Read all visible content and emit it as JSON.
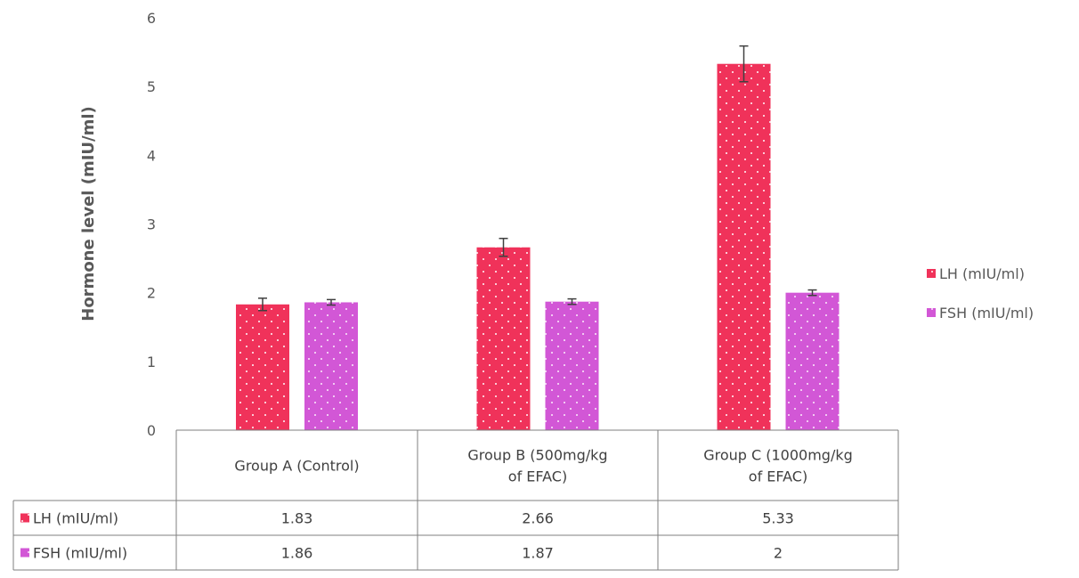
{
  "chart_data": {
    "type": "bar",
    "ylabel": "Hormone level (mIU/ml)",
    "xlabel": "",
    "ylim": [
      0,
      6
    ],
    "yticks": [
      0,
      1,
      2,
      3,
      4,
      5,
      6
    ],
    "grid": false,
    "legend_position": "right",
    "data_table": true,
    "categories": [
      [
        "Group A (Control)"
      ],
      [
        "Group B (500mg/kg",
        "of EFAC)"
      ],
      [
        "Group C (1000mg/kg",
        "of EFAC)"
      ]
    ],
    "series": [
      {
        "name": "LH (mIU/ml)",
        "color": "#f0325a",
        "values": [
          1.83,
          2.66,
          5.33
        ],
        "table_values": [
          "1.83",
          "2.66",
          "5.33"
        ],
        "error": [
          0.09,
          0.13,
          0.26
        ]
      },
      {
        "name": "FSH (mIU/ml)",
        "color": "#d257d6",
        "values": [
          1.86,
          1.87,
          2.0
        ],
        "table_values": [
          "1.86",
          "1.87",
          "2"
        ],
        "error": [
          0.04,
          0.04,
          0.04
        ]
      }
    ]
  }
}
